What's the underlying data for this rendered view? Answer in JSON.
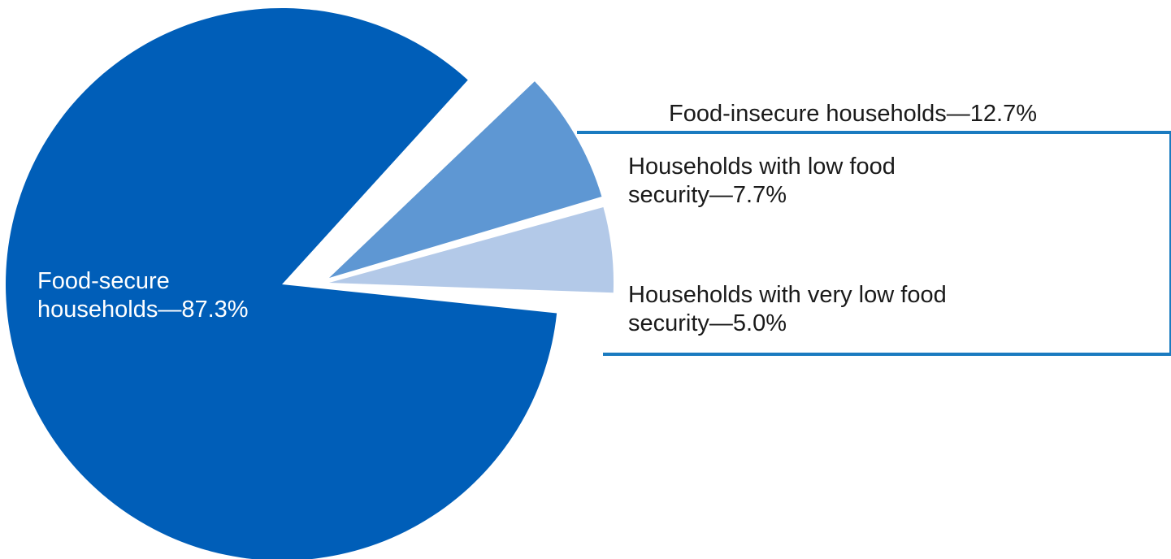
{
  "chart_data": {
    "type": "pie",
    "slices": [
      {
        "label": "Food-secure households—87.3%",
        "value": 87.3,
        "color": "#005EB8"
      },
      {
        "label": "Households with low food security—7.7%",
        "value": 7.7,
        "color": "#5E97D3"
      },
      {
        "label": "Households with very low food security—5.0%",
        "value": 5.0,
        "color": "#B3C9E8"
      }
    ],
    "group": {
      "label": "Food-insecure households—12.7%",
      "value": 12.7,
      "bracket_color": "#1A7BC0"
    },
    "labels": {
      "secure": {
        "line1": "Food-secure",
        "line2": "households—87.3%"
      },
      "insecure": "Food-insecure households—12.7%",
      "low": {
        "line1": "Households with low food",
        "line2": "security—7.7%"
      },
      "verylow": {
        "line1": "Households with very low food",
        "line2": "security—5.0%"
      }
    }
  }
}
